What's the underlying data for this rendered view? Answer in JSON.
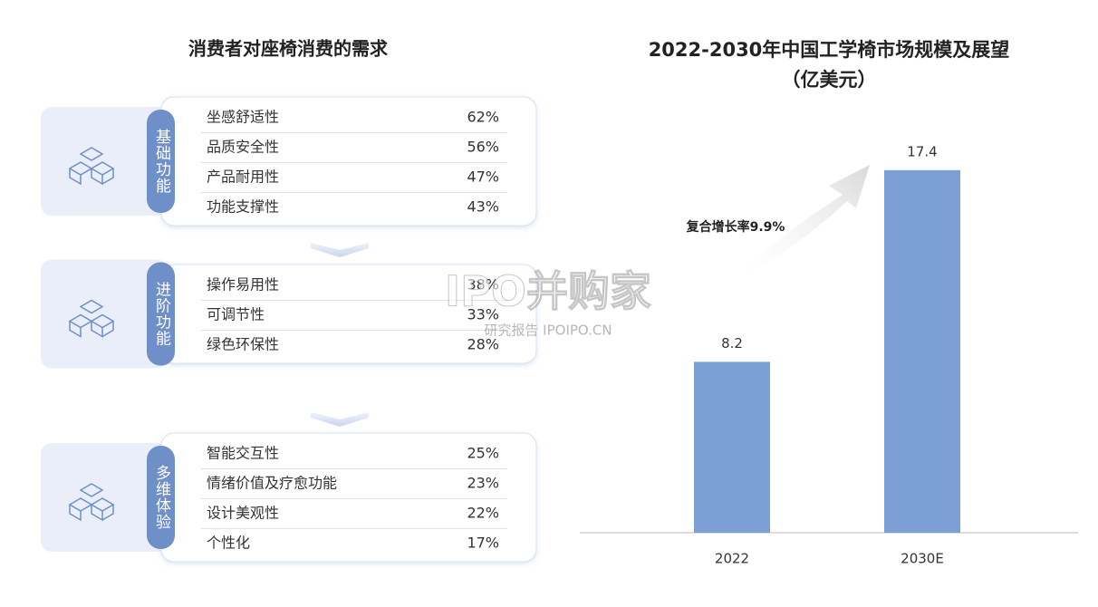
{
  "left": {
    "title": "消费者对座椅消费的需求",
    "groups": [
      {
        "label": "基础功能",
        "items": [
          {
            "name": "坐感舒适性",
            "value": "62%"
          },
          {
            "name": "品质安全性",
            "value": "56%"
          },
          {
            "name": "产品耐用性",
            "value": "47%"
          },
          {
            "name": "功能支撑性",
            "value": "43%"
          }
        ]
      },
      {
        "label": "进阶功能",
        "items": [
          {
            "name": "操作易用性",
            "value": "38%"
          },
          {
            "name": "可调节性",
            "value": "33%"
          },
          {
            "name": "绿色环保性",
            "value": "28%"
          }
        ]
      },
      {
        "label": "多维体验",
        "items": [
          {
            "name": "智能交互性",
            "value": "25%"
          },
          {
            "name": "情绪价值及疗愈功能",
            "value": "23%"
          },
          {
            "name": "设计美观性",
            "value": "22%"
          },
          {
            "name": "个性化",
            "value": "17%"
          }
        ]
      }
    ]
  },
  "watermark": {
    "title": "IPO并购家",
    "subtitle": "研究报告 IPOIPO.CN"
  },
  "chart_data": {
    "type": "bar",
    "title": "2022-2030年中国工学椅市场规模及展望",
    "subtitle": "（亿美元）",
    "categories": [
      "2022",
      "2030E"
    ],
    "values": [
      8.2,
      17.4
    ],
    "color": "#7ca0d6",
    "ylim": [
      0,
      20
    ],
    "annotation": "复合增长率9.9%"
  }
}
